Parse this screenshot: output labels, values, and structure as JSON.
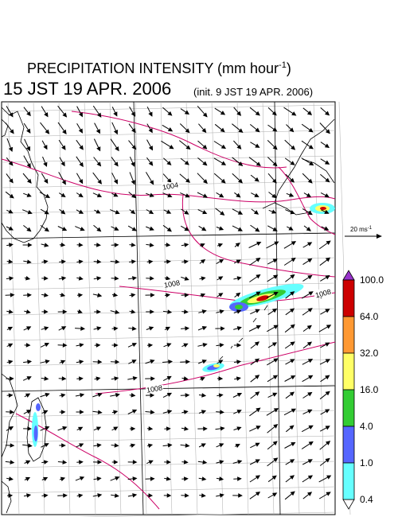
{
  "title": {
    "main": "PRECIPITATION INTENSITY (mm hour",
    "unit_exp": "-1",
    "close": ")",
    "valid_time": "15 JST 19 APR. 2006",
    "init": "(init. 9 JST 19 APR. 2006)"
  },
  "wind_scale": {
    "label": "20 ms",
    "exp": "-1"
  },
  "pressure_labels": [
    "1004",
    "1008",
    "1008",
    "1008"
  ],
  "colorbar": {
    "levels": [
      "100.0",
      "64.0",
      "32.0",
      "16.0",
      "4.0",
      "1.0",
      "0.4"
    ],
    "colors": [
      "#cc0000",
      "#ff9933",
      "#ffff66",
      "#33cc33",
      "#5566ff",
      "#66ffff"
    ],
    "over_color": "#9933cc"
  },
  "colors": {
    "coast": "#000000",
    "isobar": "#cc0066",
    "grid": "#aaaaaa"
  }
}
